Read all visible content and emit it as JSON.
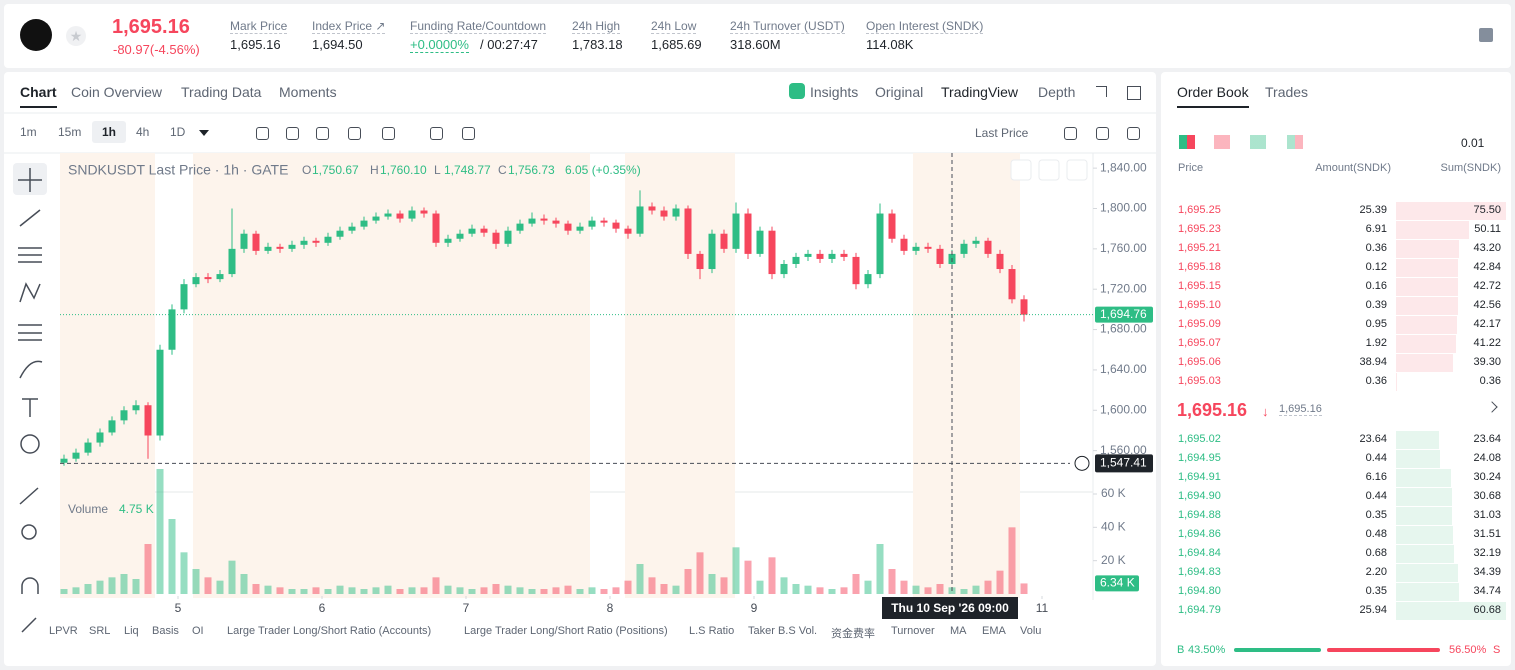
{
  "header": {
    "price": "1,695.16",
    "change": "-80.97(-4.56%)",
    "stats": [
      {
        "label": "Mark Price",
        "value": "1,695.16"
      },
      {
        "label": "Index Price ↗",
        "value": "1,694.50"
      },
      {
        "label": "Funding Rate/Countdown",
        "value": "+0.0000%",
        "extra": "/ 00:27:47"
      },
      {
        "label": "24h High",
        "value": "1,783.18"
      },
      {
        "label": "24h Low",
        "value": "1,685.69"
      },
      {
        "label": "24h Turnover (USDT)",
        "value": "318.60M"
      },
      {
        "label": "Open Interest (SNDK)",
        "value": "114.08K"
      }
    ]
  },
  "tabs": [
    "Chart",
    "Coin Overview",
    "Trading Data",
    "Moments"
  ],
  "views": [
    "Insights",
    "Original",
    "TradingView",
    "Depth"
  ],
  "intervals": [
    "1m",
    "15m",
    "1h",
    "4h",
    "1D"
  ],
  "price_source": "Last Price",
  "indicators": [
    "LPVR",
    "SRL",
    "Liq",
    "Basis",
    "OI",
    "Large Trader Long/Short Ratio (Accounts)",
    "Large Trader Long/Short Ratio (Positions)",
    "L.S Ratio",
    "Taker B.S Vol.",
    "资金费率",
    "Turnover",
    "MA",
    "EMA",
    "Volu"
  ],
  "chart_data": {
    "type": "candlestick",
    "legend": {
      "symbol": "SNDKUSDT Last Price · 1h · GATE",
      "ohlc": [
        [
          "O",
          "1,750.67"
        ],
        [
          "H",
          "1,760.10"
        ],
        [
          "L",
          "1,748.77"
        ],
        [
          "C",
          "1,756.73"
        ]
      ],
      "change": "6.05 (+0.35%)"
    },
    "volume_title": "Volume",
    "volume_value": "4.75 K",
    "up_color": "#2ebd85",
    "down_color": "#f6465d",
    "open": [
      1548,
      1552,
      1558,
      1568,
      1578,
      1590,
      1600,
      1605,
      1575,
      1660,
      1700,
      1725,
      1732,
      1730,
      1735,
      1760,
      1775,
      1758,
      1762,
      1760,
      1764,
      1768,
      1766,
      1772,
      1778,
      1782,
      1788,
      1792,
      1795,
      1790,
      1798,
      1795,
      1766,
      1770,
      1775,
      1780,
      1776,
      1765,
      1778,
      1785,
      1790,
      1788,
      1785,
      1778,
      1782,
      1788,
      1786,
      1780,
      1775,
      1802,
      1798,
      1792,
      1800,
      1755,
      1740,
      1775,
      1760,
      1795,
      1755,
      1778,
      1735,
      1745,
      1752,
      1755,
      1750,
      1755,
      1752,
      1725,
      1735,
      1795,
      1770,
      1758,
      1762,
      1760,
      1745,
      1755,
      1765,
      1768,
      1755,
      1740,
      1710
    ],
    "high": [
      1556,
      1562,
      1572,
      1582,
      1594,
      1604,
      1610,
      1608,
      1665,
      1705,
      1730,
      1736,
      1736,
      1739,
      1800,
      1779,
      1778,
      1766,
      1765,
      1768,
      1772,
      1771,
      1776,
      1782,
      1786,
      1792,
      1796,
      1799,
      1798,
      1802,
      1801,
      1798,
      1774,
      1779,
      1784,
      1783,
      1779,
      1782,
      1789,
      1796,
      1794,
      1791,
      1788,
      1786,
      1792,
      1791,
      1789,
      1783,
      1818,
      1806,
      1802,
      1804,
      1803,
      1758,
      1779,
      1779,
      1806,
      1800,
      1782,
      1782,
      1749,
      1756,
      1759,
      1759,
      1759,
      1759,
      1756,
      1739,
      1805,
      1799,
      1774,
      1766,
      1766,
      1764,
      1759,
      1769,
      1772,
      1771,
      1759,
      1744,
      1714
    ],
    "low": [
      1545,
      1549,
      1555,
      1564,
      1575,
      1586,
      1596,
      1552,
      1570,
      1655,
      1696,
      1722,
      1726,
      1727,
      1732,
      1756,
      1754,
      1755,
      1756,
      1757,
      1760,
      1762,
      1763,
      1769,
      1775,
      1779,
      1785,
      1789,
      1786,
      1787,
      1791,
      1762,
      1762,
      1767,
      1772,
      1772,
      1760,
      1762,
      1775,
      1782,
      1784,
      1781,
      1774,
      1775,
      1779,
      1782,
      1776,
      1770,
      1772,
      1794,
      1788,
      1788,
      1750,
      1730,
      1736,
      1756,
      1756,
      1750,
      1752,
      1730,
      1731,
      1741,
      1748,
      1746,
      1746,
      1748,
      1720,
      1721,
      1731,
      1766,
      1754,
      1754,
      1756,
      1741,
      1741,
      1751,
      1761,
      1751,
      1736,
      1706,
      1688
    ],
    "close": [
      1552,
      1558,
      1568,
      1578,
      1590,
      1600,
      1605,
      1575,
      1660,
      1700,
      1725,
      1732,
      1730,
      1735,
      1760,
      1775,
      1758,
      1762,
      1760,
      1764,
      1768,
      1766,
      1772,
      1778,
      1782,
      1788,
      1792,
      1795,
      1790,
      1798,
      1795,
      1766,
      1770,
      1775,
      1780,
      1776,
      1765,
      1778,
      1785,
      1790,
      1788,
      1785,
      1778,
      1782,
      1788,
      1786,
      1780,
      1775,
      1802,
      1798,
      1792,
      1800,
      1755,
      1740,
      1775,
      1760,
      1795,
      1755,
      1778,
      1735,
      1745,
      1752,
      1755,
      1750,
      1755,
      1752,
      1725,
      1735,
      1795,
      1770,
      1758,
      1762,
      1760,
      1745,
      1755,
      1765,
      1768,
      1755,
      1740,
      1710,
      1694.76
    ],
    "volume": [
      3000,
      4000,
      6000,
      8000,
      10000,
      12000,
      9000,
      30000,
      75000,
      45000,
      25000,
      15000,
      10000,
      8000,
      20000,
      12000,
      6000,
      5000,
      4000,
      3000,
      3000,
      4000,
      3000,
      5000,
      4000,
      3000,
      4000,
      5000,
      3000,
      4000,
      4000,
      10000,
      5000,
      4000,
      3000,
      4000,
      6000,
      5000,
      4000,
      3000,
      3000,
      4000,
      5000,
      3000,
      4000,
      3000,
      4000,
      8000,
      18000,
      10000,
      6000,
      5000,
      15000,
      25000,
      12000,
      10000,
      28000,
      20000,
      8000,
      22000,
      10000,
      6000,
      5000,
      4000,
      3000,
      4000,
      12000,
      8000,
      30000,
      15000,
      8000,
      5000,
      4000,
      6000,
      4000,
      3000,
      5000,
      8000,
      14000,
      40000,
      6340
    ],
    "ylim": [
      1519,
      1855
    ],
    "yticks": [
      {
        "value": 1840,
        "label": "1,840.00"
      },
      {
        "value": 1800,
        "label": "1,800.00"
      },
      {
        "value": 1760,
        "label": "1,760.00"
      },
      {
        "value": 1720,
        "label": "1,720.00"
      },
      {
        "value": 1680,
        "label": "1,680.00"
      },
      {
        "value": 1640,
        "label": "1,640.00"
      },
      {
        "value": 1600,
        "label": "1,600.00"
      },
      {
        "value": 1560,
        "label": "1,560.00"
      }
    ],
    "vlim": [
      0,
      60000
    ],
    "vticks": [
      {
        "value": 60000,
        "label": "60 K"
      },
      {
        "value": 40000,
        "label": "40 K"
      },
      {
        "value": 20000,
        "label": "20 K"
      }
    ],
    "xticks": [
      {
        "value": 9.5,
        "label": "5"
      },
      {
        "value": 21.5,
        "label": "6"
      },
      {
        "value": 33.5,
        "label": "7"
      },
      {
        "value": 45.5,
        "label": "8"
      },
      {
        "value": 57.5,
        "label": "9"
      },
      {
        "value": 81.5,
        "label": "11"
      }
    ],
    "last_price": {
      "value": 1694.76,
      "label": "1,694.76"
    },
    "last_volume": {
      "value": 6340,
      "label": "6.34 K"
    },
    "crosshair": {
      "price": {
        "value": 1547.41,
        "label": "1,547.41"
      },
      "x": 74,
      "time": "Thu 10 Sep '26  09:00"
    }
  },
  "order_book": {
    "tabs": [
      "Order Book",
      "Trades"
    ],
    "step": "0.01",
    "columns": [
      "Price",
      "Amount(SNDK)",
      "Sum(SNDK)"
    ],
    "asks": [
      [
        "1,695.25",
        "25.39",
        "75.50"
      ],
      [
        "1,695.23",
        "6.91",
        "50.11"
      ],
      [
        "1,695.21",
        "0.36",
        "43.20"
      ],
      [
        "1,695.18",
        "0.12",
        "42.84"
      ],
      [
        "1,695.15",
        "0.16",
        "42.72"
      ],
      [
        "1,695.10",
        "0.39",
        "42.56"
      ],
      [
        "1,695.09",
        "0.95",
        "42.17"
      ],
      [
        "1,695.07",
        "1.92",
        "41.22"
      ],
      [
        "1,695.06",
        "38.94",
        "39.30"
      ],
      [
        "1,695.03",
        "0.36",
        "0.36"
      ]
    ],
    "mid": "1,695.16",
    "mark": "1,695.16",
    "bids": [
      [
        "1,695.02",
        "23.64",
        "23.64"
      ],
      [
        "1,694.95",
        "0.44",
        "24.08"
      ],
      [
        "1,694.91",
        "6.16",
        "30.24"
      ],
      [
        "1,694.90",
        "0.44",
        "30.68"
      ],
      [
        "1,694.88",
        "0.35",
        "31.03"
      ],
      [
        "1,694.86",
        "0.48",
        "31.51"
      ],
      [
        "1,694.84",
        "0.68",
        "32.19"
      ],
      [
        "1,694.83",
        "2.20",
        "34.39"
      ],
      [
        "1,694.80",
        "0.35",
        "34.74"
      ],
      [
        "1,694.79",
        "25.94",
        "60.68"
      ]
    ],
    "buy_label": "B",
    "buy": "43.50%",
    "sell": "56.50%",
    "sell_label": "S"
  }
}
